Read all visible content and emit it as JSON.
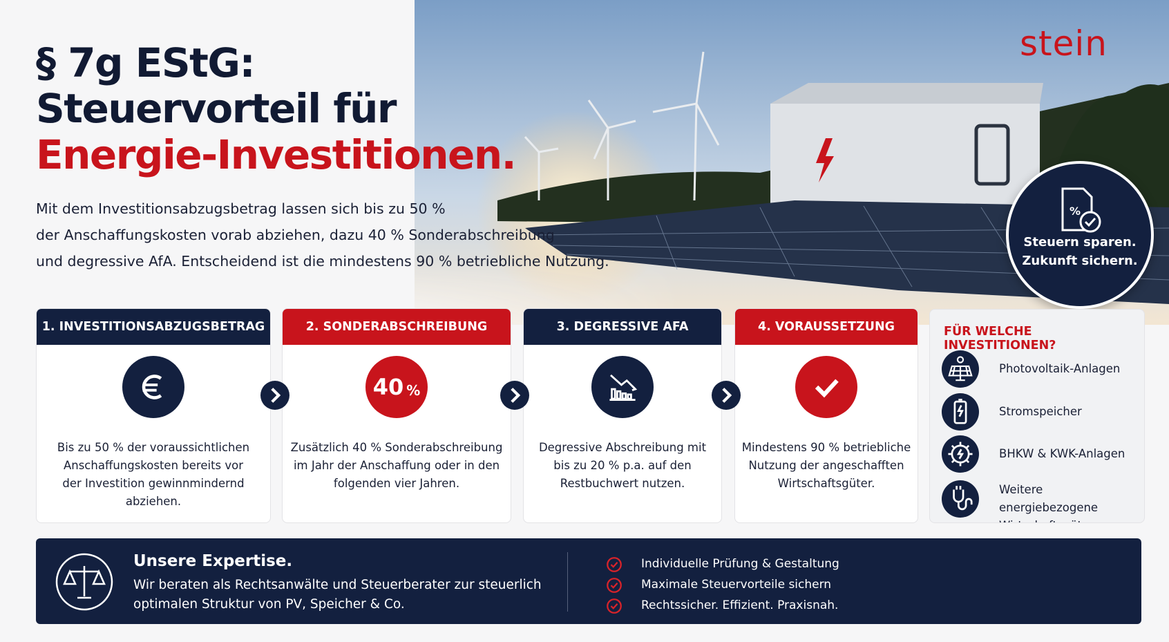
{
  "header": {
    "title_line1": "§ 7g EStG:",
    "title_line2": "Steuervorteil für",
    "title_line3": "Energie-Investitionen.",
    "intro_lines": [
      "Mit dem Investitionsabzugsbetrag lassen sich bis zu 50 %",
      "der Anschaffungskosten vorab abziehen, dazu 40 % Sonderabschreibung",
      "und degressive AfA. Entscheidend ist die mindestens 90 % betriebliche Nutzung."
    ],
    "logo": "stein"
  },
  "badge": {
    "lines": [
      "Steuern sparen.",
      "Zukunft sichern."
    ]
  },
  "steps": [
    {
      "title": "1. INVESTITIONSABZUGSBETRAG",
      "lines": [
        "Bis zu 50 % der voraussichtlichen",
        "Anschaffungskosten bereits vor",
        "der Investition gewinnmindernd",
        "abziehen."
      ]
    },
    {
      "title": "2. SONDERABSCHREIBUNG",
      "icon_number": "40",
      "icon_unit": "%",
      "lines": [
        "Zusätzlich 40 % Sonderabschreibung",
        "im Jahr der Anschaffung oder in den",
        "folgenden vier Jahren."
      ]
    },
    {
      "title": "3. DEGRESSIVE AFA",
      "lines": [
        "Degressive Abschreibung mit",
        "bis zu 20 % p.a. auf den",
        "Restbuchwert nutzen."
      ]
    },
    {
      "title": "4. VORAUSSETZUNG",
      "lines": [
        "Mindestens 90 % betriebliche",
        "Nutzung der angeschafften",
        "Wirtschaftsgüter."
      ]
    }
  ],
  "sidebar": {
    "title": "FÜR WELCHE INVESTITIONEN?",
    "items": [
      [
        "Photovoltaik-Anlagen"
      ],
      [
        "Stromspeicher"
      ],
      [
        "BHKW & KWK-Anlagen"
      ],
      [
        "Weitere energiebezogene",
        "Wirtschaftsgüter"
      ]
    ]
  },
  "footer": {
    "title": "Unsere Expertise.",
    "lines": [
      "Wir beraten als Rechtsanwälte und Steuerberater zur steuerlich",
      "optimalen Struktur von PV, Speicher & Co."
    ],
    "checklist": [
      "Individuelle Prüfung & Gestaltung",
      "Maximale Steuervorteile sichern",
      "Rechtssicher. Effizient. Praxisnah."
    ]
  }
}
